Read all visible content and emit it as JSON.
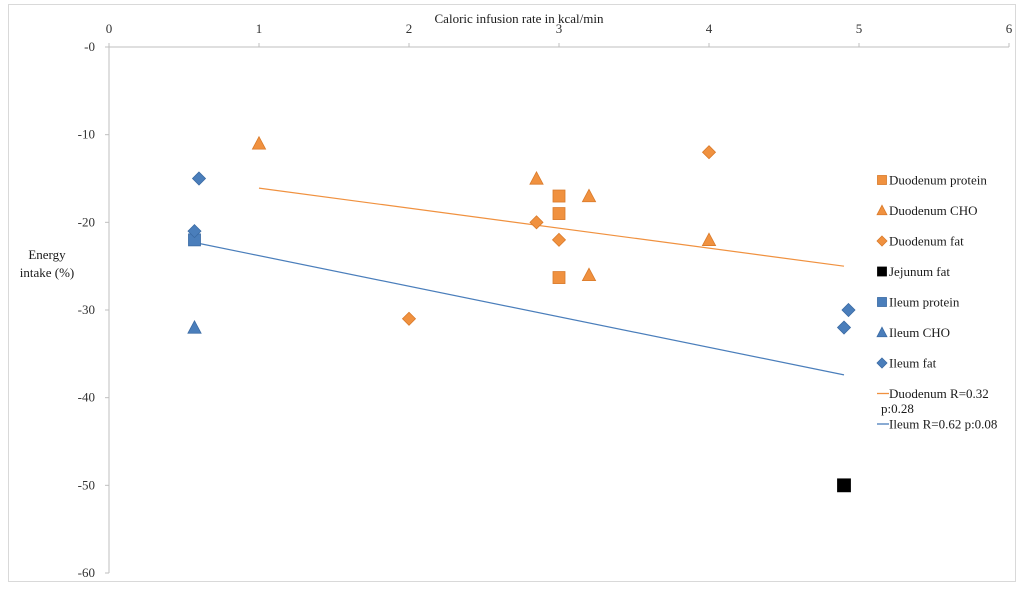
{
  "chart_data": {
    "type": "scatter",
    "title": "",
    "xlabel": "Caloric infusion rate in kcal/min",
    "ylabel_lines": [
      "Energy",
      "intake (%)"
    ],
    "xlim": [
      0,
      6
    ],
    "ylim": [
      -60,
      0
    ],
    "x_ticks": [
      0,
      1,
      2,
      3,
      4,
      5,
      6
    ],
    "y_ticks": [
      0,
      -10,
      -20,
      -30,
      -40,
      -50,
      -60
    ],
    "y_tick_labels": [
      "-0",
      "-10",
      "-20",
      "-30",
      "-40",
      "-50",
      "-60"
    ],
    "x_axis_position": "top",
    "grid": false,
    "legend_position": "right",
    "series": [
      {
        "name": "Duodenum protein",
        "marker": "square",
        "color": "#f0913f",
        "points": [
          [
            3.0,
            -17
          ],
          [
            3.0,
            -19
          ],
          [
            3.0,
            -26.3
          ]
        ]
      },
      {
        "name": "Duodenum CHO",
        "marker": "triangle",
        "color": "#f0913f",
        "points": [
          [
            1.0,
            -11
          ],
          [
            2.85,
            -15
          ],
          [
            3.2,
            -17
          ],
          [
            4.0,
            -22
          ],
          [
            3.2,
            -26
          ]
        ]
      },
      {
        "name": "Duodenum fat",
        "marker": "diamond",
        "color": "#f0913f",
        "points": [
          [
            4.0,
            -12
          ],
          [
            2.85,
            -20
          ],
          [
            3.0,
            -22
          ],
          [
            2.0,
            -31
          ]
        ]
      },
      {
        "name": "Jejunum fat",
        "marker": "square",
        "color": "#000000",
        "points": [
          [
            4.9,
            -50
          ]
        ]
      },
      {
        "name": "Ileum protein",
        "marker": "square",
        "color": "#4a7ebb",
        "points": [
          [
            0.57,
            -22
          ]
        ]
      },
      {
        "name": "Ileum CHO",
        "marker": "triangle",
        "color": "#4a7ebb",
        "points": [
          [
            0.57,
            -32
          ]
        ]
      },
      {
        "name": "Ileum fat",
        "marker": "diamond",
        "color": "#4a7ebb",
        "points": [
          [
            0.6,
            -15
          ],
          [
            0.57,
            -21
          ],
          [
            4.93,
            -30
          ],
          [
            4.9,
            -32
          ]
        ]
      }
    ],
    "trendlines": [
      {
        "name_lines": [
          "Duodenum R=0.32",
          "p:0.28"
        ],
        "color": "#f0913f",
        "from": [
          1.0,
          -16.1
        ],
        "to": [
          4.9,
          -25
        ]
      },
      {
        "name_lines": [
          "Ileum R=0.62 p:0.08"
        ],
        "color": "#4a7ebb",
        "from": [
          0.57,
          -22.3
        ],
        "to": [
          4.9,
          -37.4
        ]
      }
    ]
  }
}
